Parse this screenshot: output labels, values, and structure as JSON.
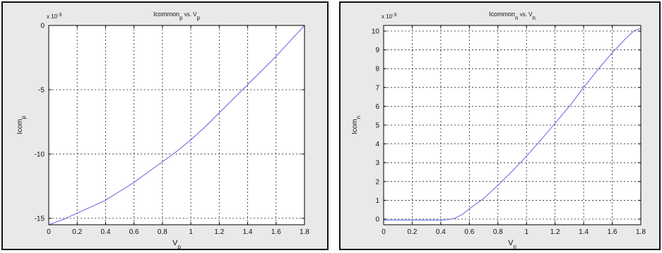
{
  "chart_data": [
    {
      "type": "line",
      "title": "Icommon",
      "title_sub": "p",
      "title_mid": " vs. V",
      "title_sub2": "p",
      "xlabel": "V",
      "xlabel_sub": "p",
      "ylabel": "Icom",
      "ylabel_sub": "p",
      "yscale_label": "x 10",
      "yscale_exp": "-3",
      "xlim": [
        0,
        1.8
      ],
      "ylim": [
        -15.5,
        0
      ],
      "xticks": [
        "0",
        "0.2",
        "0.4",
        "0.6",
        "0.8",
        "1",
        "1.2",
        "1.4",
        "1.6",
        "1.8"
      ],
      "xtick_values": [
        0,
        0.2,
        0.4,
        0.6,
        0.8,
        1.0,
        1.2,
        1.4,
        1.6,
        1.8
      ],
      "yticks": [
        "-15",
        "-10",
        "-5",
        "0"
      ],
      "ytick_values": [
        -15,
        -10,
        -5,
        0
      ],
      "grid": true,
      "line_color": "#6f72e8",
      "series": [
        {
          "x": [
            0,
            0.1,
            0.2,
            0.3,
            0.4,
            0.5,
            0.6,
            0.7,
            0.8,
            0.9,
            1.0,
            1.1,
            1.2,
            1.3,
            1.4,
            1.5,
            1.6,
            1.7,
            1.8
          ],
          "y": [
            -15.5,
            -15.1,
            -14.6,
            -14.1,
            -13.6,
            -12.9,
            -12.2,
            -11.4,
            -10.6,
            -9.8,
            -8.9,
            -7.9,
            -6.8,
            -5.7,
            -4.6,
            -3.5,
            -2.4,
            -1.2,
            0
          ]
        }
      ]
    },
    {
      "type": "line",
      "title": "Icommon",
      "title_sub": "n",
      "title_mid": " vs. V",
      "title_sub2": "n",
      "xlabel": "V",
      "xlabel_sub": "n",
      "ylabel": "Icom",
      "ylabel_sub": "n",
      "yscale_label": "x 10",
      "yscale_exp": "-3",
      "xlim": [
        0,
        1.8
      ],
      "ylim": [
        -0.3,
        10.3
      ],
      "xticks": [
        "0",
        "0.2",
        "0.4",
        "0.6",
        "0.8",
        "1",
        "1.2",
        "1.4",
        "1.6",
        "1.8"
      ],
      "xtick_values": [
        0,
        0.2,
        0.4,
        0.6,
        0.8,
        1.0,
        1.2,
        1.4,
        1.6,
        1.8
      ],
      "yticks": [
        "0",
        "1",
        "2",
        "3",
        "4",
        "5",
        "6",
        "7",
        "8",
        "9",
        "10"
      ],
      "ytick_values": [
        0,
        1,
        2,
        3,
        4,
        5,
        6,
        7,
        8,
        9,
        10
      ],
      "grid": true,
      "line_color": "#6f72e8",
      "series": [
        {
          "x": [
            0,
            0.1,
            0.2,
            0.3,
            0.4,
            0.45,
            0.5,
            0.55,
            0.6,
            0.7,
            0.8,
            0.9,
            1.0,
            1.1,
            1.2,
            1.3,
            1.4,
            1.5,
            1.6,
            1.7,
            1.75,
            1.8
          ],
          "y": [
            -0.05,
            -0.05,
            -0.05,
            -0.05,
            -0.05,
            -0.03,
            0.05,
            0.25,
            0.55,
            1.1,
            1.8,
            2.55,
            3.35,
            4.2,
            5.1,
            6.0,
            7.0,
            7.95,
            8.85,
            9.65,
            10.0,
            10.15
          ]
        }
      ]
    }
  ]
}
